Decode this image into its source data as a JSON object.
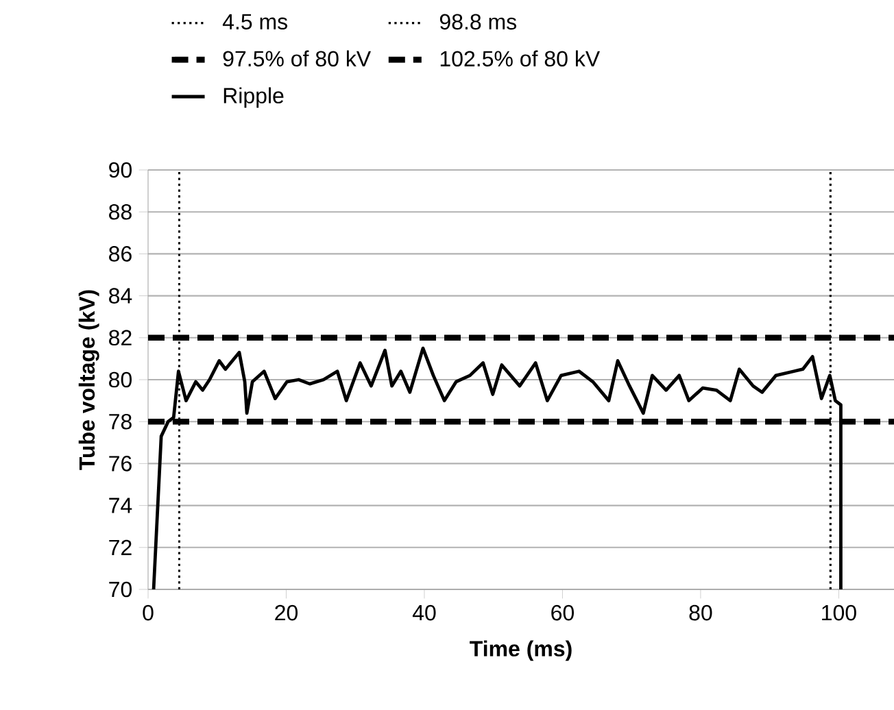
{
  "chart_data": {
    "type": "line",
    "xlabel": "Time (ms)",
    "ylabel": "Tube voltage (kV)",
    "xlim": [
      0,
      108
    ],
    "ylim": [
      70,
      90
    ],
    "xticks": [
      0,
      20,
      40,
      60,
      80,
      100
    ],
    "yticks": [
      70,
      72,
      74,
      76,
      78,
      80,
      82,
      84,
      86,
      88,
      90
    ],
    "grid": "y",
    "legend": "top",
    "marker": "none",
    "series": [
      {
        "name": "4.5 ms",
        "color": "#000000",
        "line_style": "dotted",
        "x": [
          4.5,
          4.5
        ],
        "values": [
          70,
          90
        ]
      },
      {
        "name": "98.8 ms",
        "color": "#000000",
        "line_style": "dotted",
        "x": [
          98.8,
          98.8
        ],
        "values": [
          70,
          90
        ]
      },
      {
        "name": "97.5% of 80 kV",
        "color": "#000000",
        "line_style": "dashed",
        "x": [
          0,
          108
        ],
        "values": [
          78,
          78
        ]
      },
      {
        "name": "102.5% of 80 kV",
        "color": "#000000",
        "line_style": "dashed",
        "x": [
          0,
          108
        ],
        "values": [
          82,
          82
        ]
      },
      {
        "name": "Ripple",
        "color": "#000000",
        "line_style": "solid",
        "x": [
          0.8,
          1.9,
          2.9,
          3.7,
          4.4,
          5.5,
          6.9,
          7.9,
          8.9,
          10.3,
          11.2,
          13.2,
          14.0,
          14.3,
          15.1,
          16.8,
          18.4,
          20.1,
          21.8,
          23.4,
          25.4,
          27.4,
          28.7,
          30.7,
          32.3,
          34.3,
          35.3,
          36.6,
          37.9,
          39.8,
          41.3,
          42.9,
          44.6,
          46.6,
          48.5,
          49.9,
          51.2,
          53.8,
          56.1,
          57.8,
          59.8,
          62.4,
          64.4,
          66.7,
          68.0,
          69.7,
          71.7,
          73.0,
          75.0,
          76.9,
          78.3,
          80.3,
          82.3,
          84.3,
          85.6,
          87.6,
          88.9,
          90.9,
          93.5,
          94.8,
          96.2,
          97.5,
          98.7,
          99.5,
          100.3,
          100.3
        ],
        "values": [
          70,
          77.3,
          78,
          78.2,
          80.4,
          79,
          79.9,
          79.5,
          80.0,
          80.9,
          80.5,
          81.3,
          79.9,
          78.4,
          79.9,
          80.4,
          79.1,
          79.9,
          80.0,
          79.8,
          80.0,
          80.4,
          79.0,
          80.8,
          79.7,
          81.4,
          79.7,
          80.4,
          79.4,
          81.5,
          80.2,
          79.0,
          79.9,
          80.2,
          80.8,
          79.3,
          80.7,
          79.7,
          80.8,
          79.0,
          80.2,
          80.4,
          79.9,
          79.0,
          80.9,
          79.7,
          78.4,
          80.2,
          79.5,
          80.2,
          79.0,
          79.6,
          79.5,
          79.0,
          80.5,
          79.7,
          79.4,
          80.2,
          80.4,
          80.5,
          81.1,
          79.1,
          80.2,
          79.0,
          78.8,
          70
        ]
      }
    ]
  }
}
